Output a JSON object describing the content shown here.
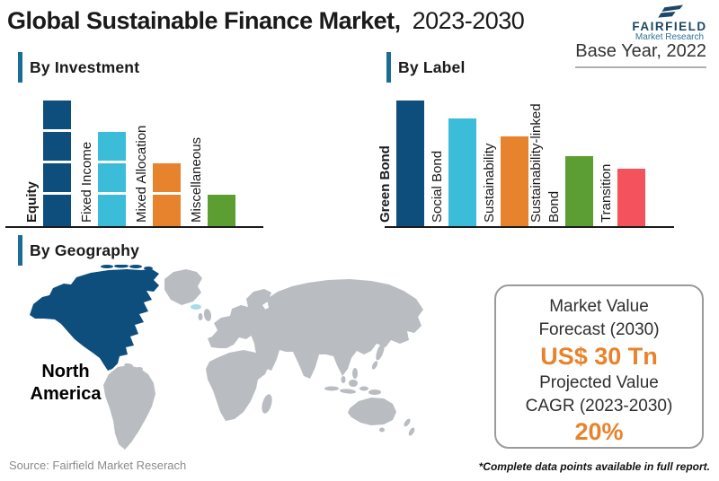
{
  "header": {
    "title_bold": "Global Sustainable Finance Market,",
    "title_regular": "2023-2030",
    "base_year": "Base Year, 2022",
    "logo": {
      "name": "FAIRFIELD",
      "tagline": "Market Research"
    }
  },
  "sections": {
    "investment": {
      "heading": "By Investment"
    },
    "label": {
      "heading": "By Label"
    },
    "geography": {
      "heading": "By Geography"
    }
  },
  "map": {
    "highlighted_region": "North America",
    "region_label_lines": [
      "North",
      "America"
    ]
  },
  "infobox": {
    "forecast_line1": "Market Value",
    "forecast_line2": "Forecast (2030)",
    "forecast_value": "US$ 30 Tn",
    "cagr_line1": "Projected Value",
    "cagr_line2": "CAGR (2023-2030)",
    "cagr_value": "20%"
  },
  "footer": {
    "source": "Source: Fairfield Market Reserach",
    "note": "*Complete data points available in full report."
  },
  "colors": {
    "dark_blue": "#0d4e7d",
    "cyan": "#3bbcd9",
    "orange": "#e8832d",
    "green": "#5c9e31",
    "red": "#f4525c",
    "accent_bar": "#1b6d95",
    "map_gray": "#b9bdc1",
    "map_highlight": "#0d4e7d",
    "map_accent_light": "#a8dcec",
    "logo_dark": "#1c4766",
    "logo_light": "#2e7396"
  },
  "chart_data": [
    {
      "type": "bar",
      "title": "By Investment",
      "categories": [
        "Equity",
        "Fixed Income",
        "Mixed Allocation",
        "Miscellaneous"
      ],
      "values": [
        4,
        3,
        2,
        1
      ],
      "values_note": "relative heights; no numeric axis shown, bars drawn as stacked unit blocks",
      "colors": [
        "#0d4e7d",
        "#3bbcd9",
        "#e8832d",
        "#5c9e31"
      ],
      "segmented": true,
      "first_label_bold": true,
      "label_lines": [
        [
          "Equity"
        ],
        [
          "Fixed Income"
        ],
        [
          "Mixed Allocation"
        ],
        [
          "Miscellaneous"
        ]
      ],
      "xlabel": "",
      "ylabel": "",
      "grid": false,
      "legend": false
    },
    {
      "type": "bar",
      "title": "By Label",
      "categories": [
        "Green Bond",
        "Social Bond",
        "Sustainability",
        "Sustainability-linked Bond",
        "Transition"
      ],
      "values": [
        4,
        3.43,
        2.86,
        2.23,
        1.83
      ],
      "values_note": "relative heights; no numeric axis shown",
      "colors": [
        "#0d4e7d",
        "#3bbcd9",
        "#e8832d",
        "#5c9e31",
        "#f4525c"
      ],
      "segmented": false,
      "first_label_bold": true,
      "label_lines": [
        [
          "Green Bond"
        ],
        [
          "Social Bond"
        ],
        [
          "Sustainability"
        ],
        [
          "Sustainability-linked",
          "Bond"
        ],
        [
          "Transition"
        ]
      ],
      "xlabel": "",
      "ylabel": "",
      "grid": false,
      "legend": false
    }
  ]
}
